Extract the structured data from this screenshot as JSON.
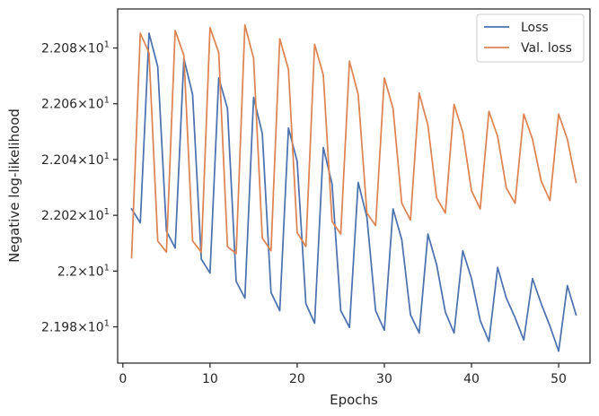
{
  "chart_data": {
    "type": "line",
    "xlabel": "Epochs",
    "ylabel": "Negative log-likelihood",
    "xlim": [
      -0.6,
      53.6
    ],
    "ylim": [
      21.967,
      22.094
    ],
    "x_ticks": [
      0,
      10,
      20,
      30,
      40,
      50
    ],
    "y_ticks": [
      {
        "value": 21.98,
        "mantissa": "2.198",
        "exp": "1"
      },
      {
        "value": 22.0,
        "mantissa": "2.2",
        "exp": "1"
      },
      {
        "value": 22.02,
        "mantissa": "2.202",
        "exp": "1"
      },
      {
        "value": 22.04,
        "mantissa": "2.204",
        "exp": "1"
      },
      {
        "value": 22.06,
        "mantissa": "2.206",
        "exp": "1"
      },
      {
        "value": 22.08,
        "mantissa": "2.208",
        "exp": "1"
      }
    ],
    "tick_times": "×10",
    "grid": false,
    "legend_position": "top-right",
    "x": [
      1,
      2,
      3,
      4,
      5,
      6,
      7,
      8,
      9,
      10,
      11,
      12,
      13,
      14,
      15,
      16,
      17,
      18,
      19,
      20,
      21,
      22,
      23,
      24,
      25,
      26,
      27,
      28,
      29,
      30,
      31,
      32,
      33,
      34,
      35,
      36,
      37,
      38,
      39,
      40,
      41,
      42,
      43,
      44,
      45,
      46,
      47,
      48,
      49,
      50,
      51,
      52
    ],
    "series": [
      {
        "name": "Loss",
        "color": "#4c72b0",
        "values": [
          22.0223,
          22.0173,
          22.0853,
          22.0733,
          22.0143,
          22.0083,
          22.0763,
          22.0633,
          22.0043,
          21.9993,
          22.0693,
          22.0583,
          21.9963,
          21.9903,
          22.0623,
          22.0493,
          21.9923,
          21.9858,
          22.0513,
          22.0393,
          21.9883,
          21.9813,
          22.0443,
          22.0313,
          21.9858,
          21.9798,
          22.0318,
          22.0193,
          21.9858,
          21.9788,
          22.0223,
          22.0113,
          21.9843,
          21.9778,
          22.0133,
          22.0023,
          21.9853,
          21.9778,
          22.0073,
          21.9973,
          21.9823,
          21.9748,
          22.0013,
          21.9903,
          21.9833,
          21.9753,
          21.9973,
          21.9883,
          21.9803,
          21.9713,
          21.9948,
          21.9843
        ]
      },
      {
        "name": "Val. loss",
        "color": "#dd8452",
        "values": [
          22.0048,
          22.0853,
          22.0783,
          22.0108,
          22.0068,
          22.0863,
          22.0773,
          22.0108,
          22.0068,
          22.0873,
          22.0783,
          22.0088,
          22.0063,
          22.0883,
          22.0763,
          22.0118,
          22.0073,
          22.0833,
          22.0723,
          22.0138,
          22.0088,
          22.0813,
          22.0703,
          22.0178,
          22.0133,
          22.0753,
          22.0633,
          22.0208,
          22.0163,
          22.0693,
          22.0583,
          22.0243,
          22.0183,
          22.0638,
          22.0523,
          22.0263,
          22.0208,
          22.0598,
          22.0498,
          22.0288,
          22.0223,
          22.0573,
          22.0483,
          22.0298,
          22.0243,
          22.0563,
          22.0473,
          22.0323,
          22.0253,
          22.0563,
          22.0473,
          22.0318
        ]
      }
    ]
  }
}
